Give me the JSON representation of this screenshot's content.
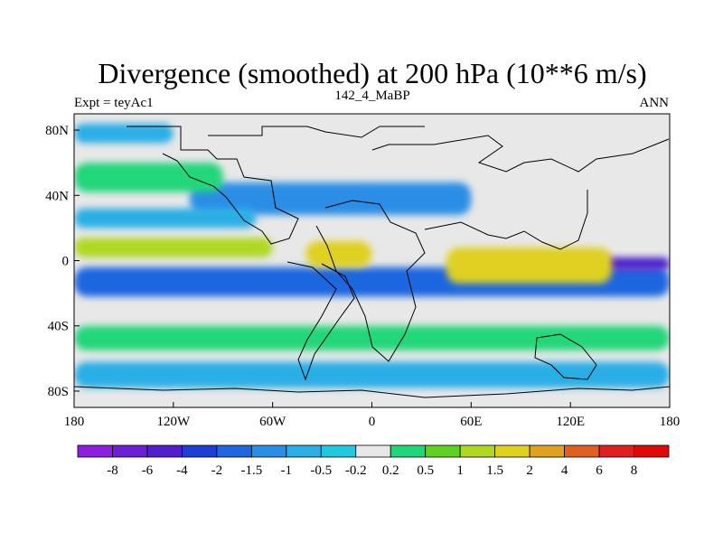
{
  "chart_data": {
    "type": "heatmap",
    "title": "Divergence (smoothed) at 200 hPa (10**6 m/s)",
    "left_label": "Expt = teyAc1",
    "center_label": "142_4_MaBP",
    "right_label": "ANN",
    "x_ticks": [
      "180",
      "120W",
      "60W",
      "0",
      "60E",
      "120E",
      "180"
    ],
    "x_tick_values": [
      -180,
      -120,
      -60,
      0,
      60,
      120,
      180
    ],
    "y_ticks": [
      "80N",
      "40N",
      "0",
      "40S",
      "80S"
    ],
    "y_tick_values": [
      80,
      40,
      0,
      -40,
      -80
    ],
    "xlim": [
      -180,
      180
    ],
    "ylim": [
      -90,
      90
    ],
    "colorbar": {
      "labels": [
        "-8",
        "-6",
        "-4",
        "-2",
        "-1.5",
        "-1",
        "-0.5",
        "-0.2",
        "0.2",
        "0.5",
        "1",
        "1.5",
        "2",
        "4",
        "6",
        "8"
      ],
      "colors": [
        "#8c1fe0",
        "#6b1fd6",
        "#5020cc",
        "#1f3ed6",
        "#1f66e0",
        "#2a8ee6",
        "#2aaee6",
        "#20c8e0",
        "#e8e8e8",
        "#20d67a",
        "#5fd21f",
        "#b0d820",
        "#e0d020",
        "#e0a020",
        "#e0601f",
        "#e02020",
        "#e00808"
      ]
    },
    "fields": [
      {
        "name": "south-tropical-band-negative",
        "lon": [
          -180,
          180
        ],
        "lat": [
          -4,
          -22
        ],
        "value": -1.5
      },
      {
        "name": "east-pacific-strong-negative",
        "lon": [
          140,
          180
        ],
        "lat": [
          2,
          -6
        ],
        "value": -4
      },
      {
        "name": "north-subtropical-negative",
        "lon": [
          -110,
          60
        ],
        "lat": [
          48,
          28
        ],
        "value": -1
      },
      {
        "name": "north-pacific-positive-band",
        "lon": [
          -180,
          -60
        ],
        "lat": [
          14,
          2
        ],
        "value": 1.5
      },
      {
        "name": "north-pacific-negative-band",
        "lon": [
          -180,
          -70
        ],
        "lat": [
          32,
          20
        ],
        "value": -0.5
      },
      {
        "name": "asia-equatorial-positive",
        "lon": [
          45,
          145
        ],
        "lat": [
          8,
          -14
        ],
        "value": 2
      },
      {
        "name": "africa-positive",
        "lon": [
          -40,
          0
        ],
        "lat": [
          12,
          -4
        ],
        "value": 2
      },
      {
        "name": "south-midlatitude-positive",
        "lon": [
          -180,
          180
        ],
        "lat": [
          -40,
          -55
        ],
        "value": 0.5
      },
      {
        "name": "north-midlatitude-positive",
        "lon": [
          -180,
          -90
        ],
        "lat": [
          60,
          42
        ],
        "value": 0.5
      },
      {
        "name": "high-latitude-negative",
        "lon": [
          -180,
          -120
        ],
        "lat": [
          84,
          72
        ],
        "value": -0.5
      },
      {
        "name": "south-high-latitude-negative",
        "lon": [
          -180,
          180
        ],
        "lat": [
          -62,
          -78
        ],
        "value": -0.5
      }
    ]
  },
  "colors": {
    "background": "#ffffff",
    "neutral": "#e8e8e8",
    "coast": "#000000"
  }
}
